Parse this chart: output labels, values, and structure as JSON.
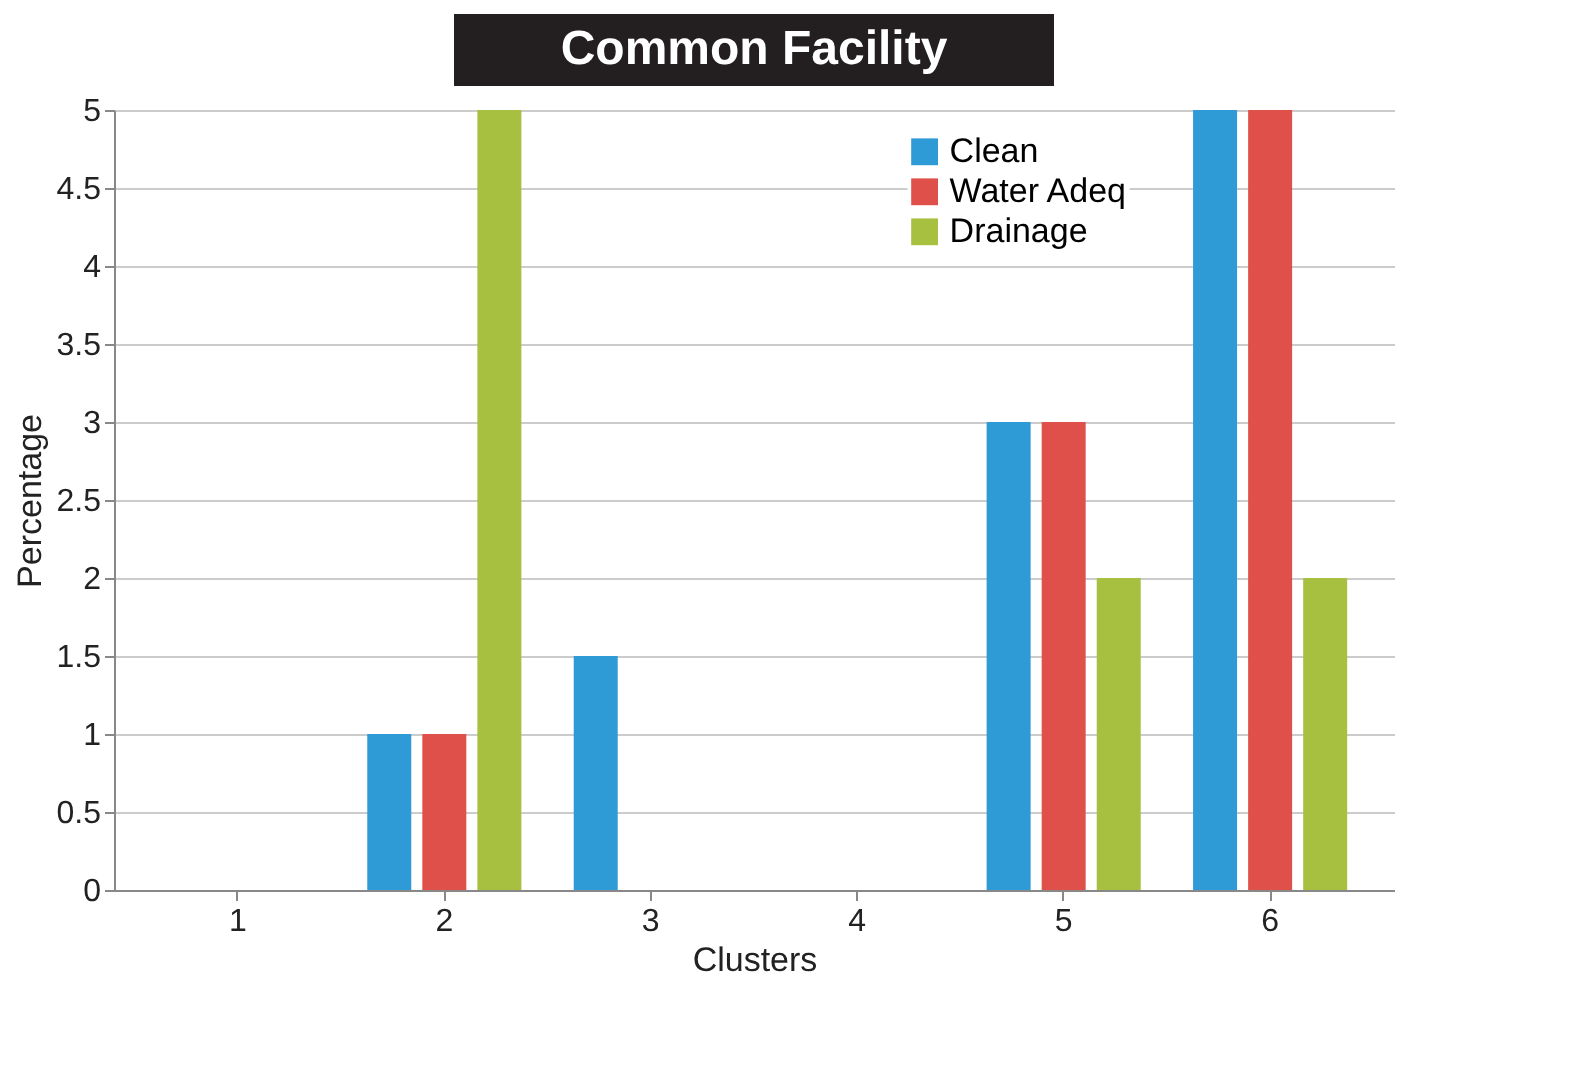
{
  "chart_data": {
    "type": "bar",
    "title": "Common Facility",
    "xlabel": "Clusters",
    "ylabel": "Percentage",
    "categories": [
      "1",
      "2",
      "3",
      "4",
      "5",
      "6"
    ],
    "series": [
      {
        "name": "Clean",
        "color": "#2e9bd6",
        "values": [
          0,
          1,
          1.5,
          0,
          3,
          5
        ]
      },
      {
        "name": "Water Adeq",
        "color": "#e0504a",
        "values": [
          0,
          1,
          0,
          0,
          3,
          5
        ]
      },
      {
        "name": "Drainage",
        "color": "#a8c040",
        "values": [
          0,
          5,
          0,
          0,
          2,
          2
        ]
      }
    ],
    "ylim": [
      0,
      5
    ],
    "yticks": [
      0,
      0.5,
      1,
      1.5,
      2,
      2.5,
      3,
      3.5,
      4,
      4.5,
      5
    ],
    "grid": "y",
    "legend": "top right"
  }
}
